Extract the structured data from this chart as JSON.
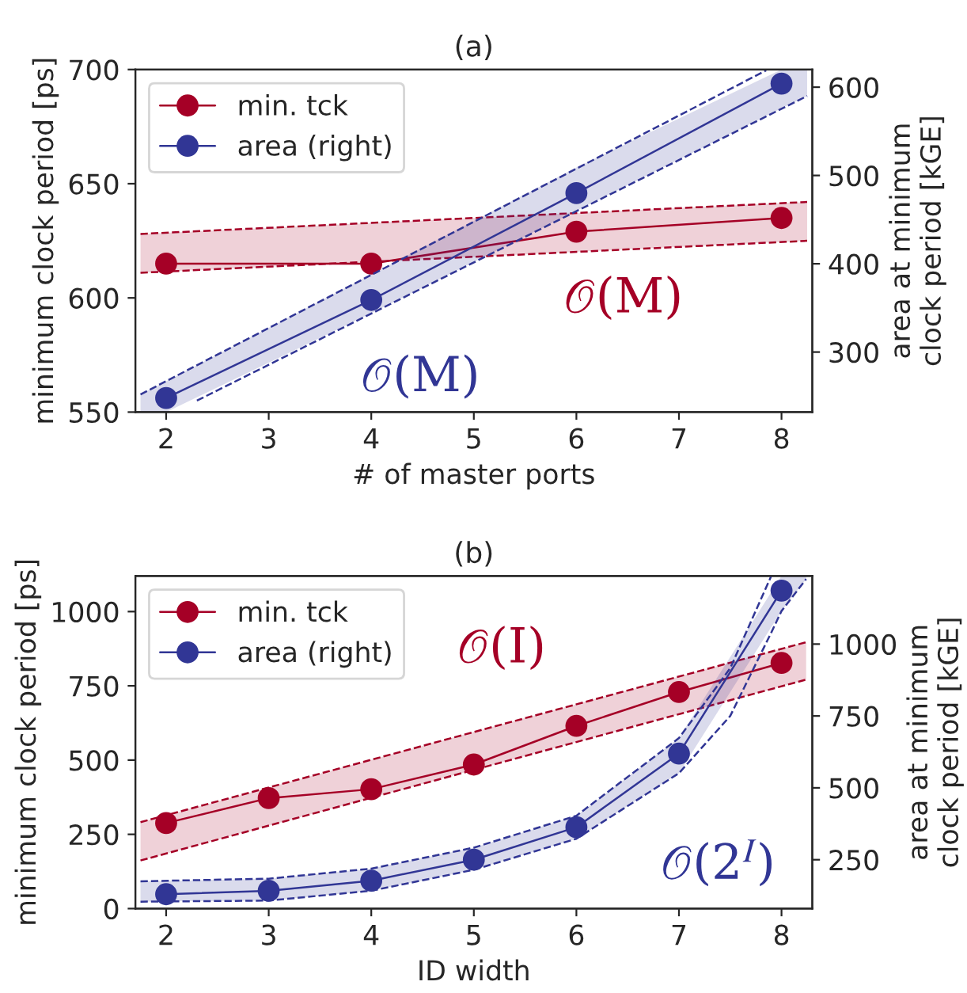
{
  "chart_data": [
    {
      "type": "line",
      "title": "(a)",
      "xlabel": "# of master ports",
      "ylabel": "minimum clock period [ps]",
      "y2label": "area at minimum\nclock period [kGE]",
      "xlim": [
        1.7,
        8.3
      ],
      "xticks": [
        2,
        3,
        4,
        5,
        6,
        7,
        8
      ],
      "ylim": [
        550,
        700
      ],
      "yticks": [
        550,
        600,
        650,
        700
      ],
      "y2lim": [
        232,
        620
      ],
      "y2ticks": [
        300,
        400,
        500,
        600
      ],
      "marker": "circle",
      "line_style": "solid",
      "grid": false,
      "legend": "top left",
      "series": [
        {
          "name": "min. tck",
          "color": "#a50026",
          "x": [
            1.75,
            2,
            4,
            6,
            8,
            8.25
          ],
          "values": [
            null,
            615,
            615,
            629,
            635,
            null
          ],
          "lower": [
            611,
            611.5,
            615.8,
            620.2,
            624.5,
            625
          ],
          "upper": [
            628,
            628.5,
            632.8,
            637.2,
            641.5,
            642
          ]
        },
        {
          "name": "area (right)",
          "color": "#313695",
          "axis": "y2",
          "x": [
            1.75,
            2,
            4,
            6,
            8,
            8.25
          ],
          "values": [
            null,
            248,
            359,
            480,
            604,
            null
          ],
          "lower": [
            232,
            232,
            344,
            460,
            576,
            590
          ],
          "upper": [
            252,
            267,
            388,
            509,
            620,
            620
          ]
        },
        {
          "type": "line",
          "line_style": "dashed",
          "marker": "none",
          "color": "#a50026",
          "x": [
            1.75,
            8.25
          ],
          "values": [
            611,
            625
          ]
        },
        {
          "type": "line",
          "line_style": "dashed",
          "marker": "none",
          "color": "#a50026",
          "x": [
            1.75,
            8.25
          ],
          "values": [
            628,
            642
          ]
        },
        {
          "type": "line",
          "line_style": "dashed",
          "marker": "none",
          "color": "#313695",
          "axis": "y2",
          "x": [
            2.3,
            8.25
          ],
          "values": [
            245,
            590
          ]
        },
        {
          "type": "line",
          "line_style": "dashed",
          "marker": "none",
          "color": "#313695",
          "axis": "y2",
          "x": [
            1.75,
            7.85
          ],
          "values": [
            252,
            619
          ]
        }
      ],
      "annotations": [
        "𝒪(M)",
        "𝒪(M)"
      ]
    },
    {
      "type": "line",
      "title": "(b)",
      "xlabel": "ID width",
      "ylabel": "minimum clock period [ps]",
      "y2label": "area at minimum\nclock period [kGE]",
      "xlim": [
        1.7,
        8.3
      ],
      "xticks": [
        2,
        3,
        4,
        5,
        6,
        7,
        8
      ],
      "ylim": [
        0,
        1120
      ],
      "yticks": [
        0,
        250,
        500,
        750,
        1000
      ],
      "y2lim": [
        80,
        1237
      ],
      "y2ticks": [
        250,
        500,
        750,
        1000
      ],
      "marker": "circle",
      "line_style": "solid",
      "grid": false,
      "legend": "top left",
      "series": [
        {
          "name": "min. tck",
          "color": "#a50026",
          "x": [
            1.75,
            2,
            3,
            4,
            5,
            6,
            7,
            8,
            8.24
          ],
          "values": [
            null,
            288,
            372,
            402,
            485,
            615,
            729,
            827,
            null
          ],
          "lower": [
            162,
            185,
            279,
            373,
            467,
            561,
            655,
            748,
            771
          ],
          "upper": [
            291,
            314,
            408,
            501,
            595,
            688,
            781,
            875,
            897
          ]
        },
        {
          "name": "area (right)",
          "color": "#313695",
          "axis": "y2",
          "x": [
            1.75,
            2,
            3,
            4,
            5,
            6,
            7,
            8,
            8.24
          ],
          "values": [
            null,
            130,
            142,
            177,
            250,
            363,
            619,
            1186,
            null
          ],
          "lower": [
            104,
            105,
            108,
            142,
            215,
            323,
            551,
            1115,
            1226
          ],
          "upper": [
            175,
            176,
            184,
            219,
            292,
            403,
            673,
            1237,
            1237
          ]
        },
        {
          "type": "line",
          "line_style": "dashed",
          "marker": "none",
          "color": "#a50026",
          "x": [
            1.75,
            8.24
          ],
          "values": [
            162,
            771
          ]
        },
        {
          "type": "line",
          "line_style": "dashed",
          "marker": "none",
          "color": "#a50026",
          "x": [
            1.75,
            8.24
          ],
          "values": [
            291,
            897
          ]
        },
        {
          "type": "line",
          "line_style": "dashed",
          "marker": "none",
          "color": "#313695",
          "axis": "y2",
          "x": [
            1.75,
            3,
            4,
            5,
            6,
            7,
            7.5,
            7.9,
            8,
            8.24
          ],
          "values": [
            104,
            108,
            142,
            215,
            323,
            551,
            750,
            1040,
            1115,
            1226
          ]
        },
        {
          "type": "line",
          "line_style": "dashed",
          "marker": "none",
          "color": "#313695",
          "axis": "y2",
          "x": [
            1.75,
            3,
            4,
            5,
            6,
            7,
            7.5,
            7.9
          ],
          "values": [
            175,
            184,
            219,
            292,
            403,
            673,
            916,
            1237
          ]
        }
      ],
      "annotations": [
        "𝒪(I)",
        "𝒪(2$^{I}$)"
      ]
    }
  ]
}
